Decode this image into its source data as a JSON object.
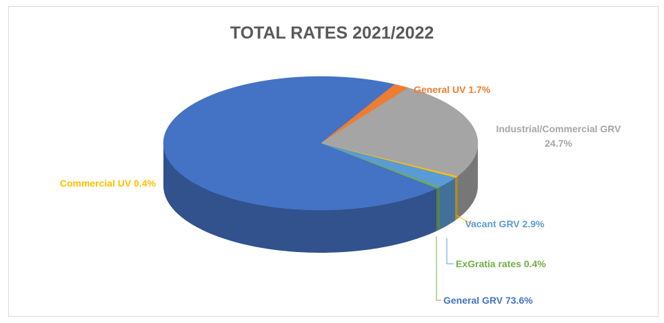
{
  "chart_data": {
    "type": "pie3d",
    "title": "TOTAL RATES 2021/2022",
    "categories": [
      "General UV",
      "Industrial/Commercial GRV",
      "Commercial UV",
      "Vacant GRV",
      "ExGratia rates",
      "General GRV"
    ],
    "values": [
      1.7,
      24.7,
      0.4,
      2.9,
      0.4,
      73.6
    ],
    "value_labels": [
      "1.7%",
      "24.7%",
      "0.4%",
      "2.9%",
      "0.4%",
      "73.6%"
    ],
    "colors": [
      "#ed7d31",
      "#a5a5a5",
      "#ffc000",
      "#5b9bd5",
      "#70ad47",
      "#4472c4"
    ]
  }
}
